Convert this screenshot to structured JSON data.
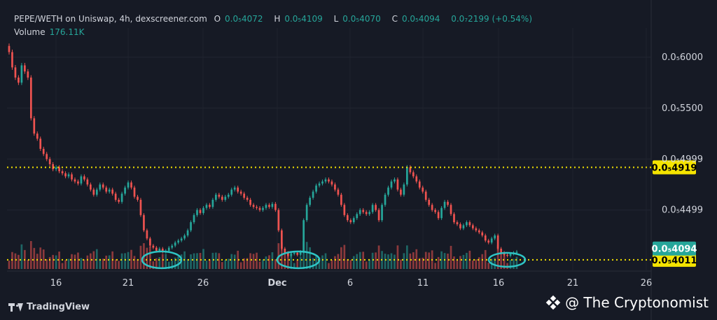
{
  "header": {
    "symbol": "PEPE/WETH on Uniswap, 4h, dexscreener.com",
    "o_label": "O",
    "o_value": "0.0₅4072",
    "h_label": "H",
    "h_value": "0.0₅4109",
    "l_label": "L",
    "l_value": "0.0₅4070",
    "c_label": "C",
    "c_value": "0.0₅4094",
    "change": "0.0₇2199 (+0.54%)",
    "volume_label": "Volume",
    "volume_value": "176.11K"
  },
  "footer": {
    "brand": "TradingView",
    "watermark": "@ The Cryptonomist"
  },
  "colors": {
    "background": "#161a25",
    "up": "#26a69a",
    "down": "#ef5350",
    "level_line": "#f5e400",
    "circle": "#2ec5c5"
  },
  "chart_data": {
    "type": "candlestick",
    "x_ticks": [
      "16",
      "21",
      "26",
      "Dec",
      "6",
      "11",
      "16",
      "21",
      "26"
    ],
    "y_ticks": [
      "0.0₅6000",
      "0.0₅5500",
      "0.0₅4999",
      "0.0₅4499"
    ],
    "ylim": [
      3.9e-06,
      6.15e-06
    ],
    "levels": [
      {
        "label": "0.0₅4919",
        "value": 4.919e-06
      },
      {
        "label": "0.0₅4011",
        "value": 4.011e-06
      }
    ],
    "last_price": {
      "label": "0.0₅4094",
      "value": 4.094e-06
    },
    "closes": [
      6.05e-06,
      5.9e-06,
      5.8e-06,
      5.75e-06,
      5.92e-06,
      5.86e-06,
      5.8e-06,
      5.4e-06,
      5.25e-06,
      5.2e-06,
      5.1e-06,
      5.05e-06,
      5e-06,
      4.95e-06,
      4.9e-06,
      4.92e-06,
      4.88e-06,
      4.86e-06,
      4.83e-06,
      4.85e-06,
      4.8e-06,
      4.78e-06,
      4.76e-06,
      4.83e-06,
      4.8e-06,
      4.75e-06,
      4.7e-06,
      4.65e-06,
      4.7e-06,
      4.75e-06,
      4.72e-06,
      4.68e-06,
      4.7e-06,
      4.66e-06,
      4.6e-06,
      4.58e-06,
      4.66e-06,
      4.72e-06,
      4.77e-06,
      4.72e-06,
      4.63e-06,
      4.6e-06,
      4.45e-06,
      4.3e-06,
      4.22e-06,
      4.15e-06,
      4.13e-06,
      4.1e-06,
      4.12e-06,
      4.09e-06,
      4.1e-06,
      4.13e-06,
      4.15e-06,
      4.18e-06,
      4.2e-06,
      4.22e-06,
      4.25e-06,
      4.3e-06,
      4.38e-06,
      4.45e-06,
      4.5e-06,
      4.47e-06,
      4.52e-06,
      4.55e-06,
      4.53e-06,
      4.6e-06,
      4.65e-06,
      4.63e-06,
      4.6e-06,
      4.63e-06,
      4.65e-06,
      4.7e-06,
      4.72e-06,
      4.68e-06,
      4.66e-06,
      4.62e-06,
      4.6e-06,
      4.55e-06,
      4.53e-06,
      4.52e-06,
      4.5e-06,
      4.52e-06,
      4.55e-06,
      4.53e-06,
      4.56e-06,
      4.5e-06,
      4.3e-06,
      4.12e-06,
      4.08e-06,
      4.05e-06,
      4.07e-06,
      4.08e-06,
      4.06e-06,
      4.09e-06,
      4.4e-06,
      4.55e-06,
      4.62e-06,
      4.68e-06,
      4.74e-06,
      4.76e-06,
      4.78e-06,
      4.8e-06,
      4.78e-06,
      4.75e-06,
      4.7e-06,
      4.65e-06,
      4.55e-06,
      4.45e-06,
      4.4e-06,
      4.38e-06,
      4.42e-06,
      4.46e-06,
      4.5e-06,
      4.48e-06,
      4.46e-06,
      4.48e-06,
      4.55e-06,
      4.5e-06,
      4.4e-06,
      4.55e-06,
      4.65e-06,
      4.72e-06,
      4.78e-06,
      4.8e-06,
      4.7e-06,
      4.65e-06,
      4.75e-06,
      4.92e-06,
      4.87e-06,
      4.83e-06,
      4.78e-06,
      4.72e-06,
      4.68e-06,
      4.6e-06,
      4.55e-06,
      4.5e-06,
      4.48e-06,
      4.42e-06,
      4.52e-06,
      4.58e-06,
      4.55e-06,
      4.46e-06,
      4.38e-06,
      4.36e-06,
      4.32e-06,
      4.35e-06,
      4.38e-06,
      4.35e-06,
      4.32e-06,
      4.3e-06,
      4.28e-06,
      4.25e-06,
      4.2e-06,
      4.18e-06,
      4.22e-06,
      4.25e-06,
      4.12e-06,
      4.08e-06,
      4.06e-06,
      4.05e-06,
      4.07e-06,
      4.08e-06,
      4.09e-06
    ]
  }
}
